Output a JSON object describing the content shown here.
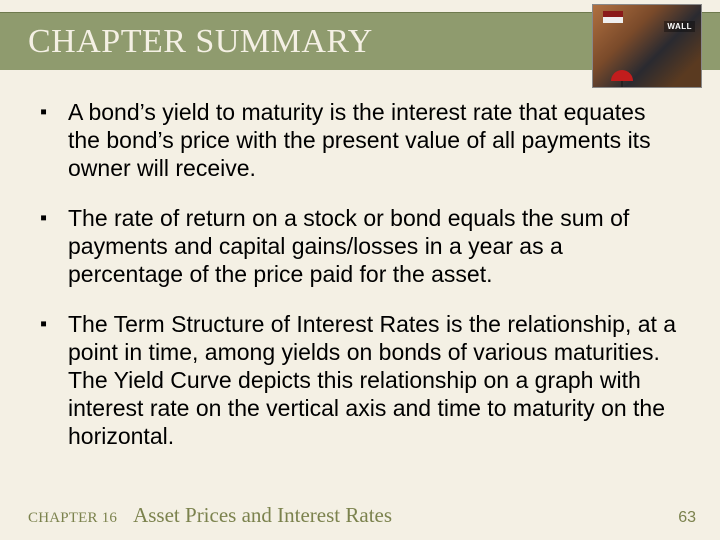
{
  "colors": {
    "page_background": "#f4f0e4",
    "title_band_bg": "#8f9b6e",
    "title_band_border": "#6e7a4e",
    "title_text": "#f4f0e4",
    "body_text": "#000000",
    "footer_text": "#7b824d",
    "umbrella": "#c21d1d"
  },
  "typography": {
    "title_font_family": "Times New Roman",
    "title_fontsize_pt": 26,
    "body_font_family": "Arial",
    "body_fontsize_pt": 17,
    "footer_chapter_label_fontsize_pt": 11,
    "footer_chapter_title_fontsize_pt": 16,
    "page_number_fontsize_pt": 12
  },
  "title": "CHAPTER SUMMARY",
  "header_image": {
    "sign_text": "WALL",
    "description": "wall-street-sign-photo"
  },
  "bullets": {
    "mark": "▪",
    "items": [
      "A bond’s yield to maturity is the interest rate that equates the bond’s price with the present value of all payments its owner will receive.",
      "The rate of return on a stock or bond equals the sum of payments and capital gains/losses in a year as a percentage of the price paid for the asset.",
      "The Term Structure of Interest Rates is the relationship, at a point in time, among yields on bonds of various maturities.  The Yield Curve depicts this relationship on a graph with interest rate on the vertical axis and time to maturity on the horizontal."
    ]
  },
  "footer": {
    "chapter_label": "CHAPTER 16",
    "chapter_title": "Asset Prices and Interest Rates",
    "page_number": "63"
  }
}
